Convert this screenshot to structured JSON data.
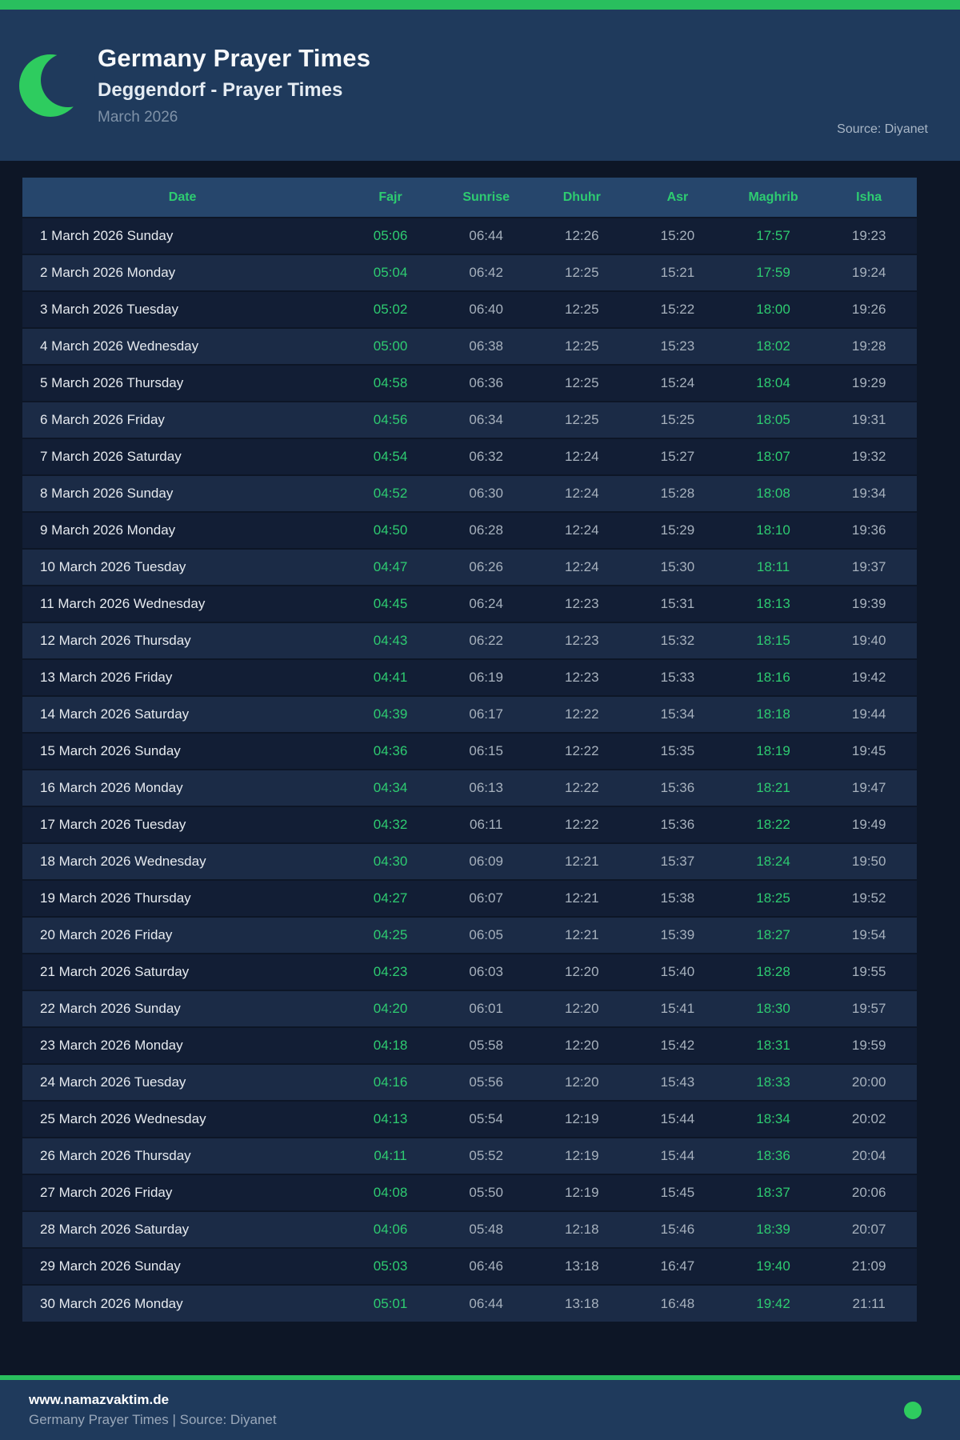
{
  "header": {
    "title": "Germany Prayer Times",
    "subtitle": "Deggendorf - Prayer Times",
    "period": "March 2026",
    "source": "Source: Diyanet"
  },
  "colors": {
    "accent_green": "#2ecc71",
    "bar_green": "#29bf5e",
    "header_navy": "#1f3a5c",
    "page_bg": "#0d1626",
    "table_header_bg": "#26466c",
    "row_odd": "#121e35",
    "row_even": "#1b2b46"
  },
  "icons": {
    "moon": "crescent-moon-icon",
    "status_dot": "green-dot-icon"
  },
  "table": {
    "columns": [
      "Date",
      "Fajr",
      "Sunrise",
      "Dhuhr",
      "Asr",
      "Maghrib",
      "Isha"
    ],
    "rows": [
      {
        "date": "1 March 2026 Sunday",
        "fajr": "05:06",
        "sunrise": "06:44",
        "dhuhr": "12:26",
        "asr": "15:20",
        "maghrib": "17:57",
        "isha": "19:23"
      },
      {
        "date": "2 March 2026 Monday",
        "fajr": "05:04",
        "sunrise": "06:42",
        "dhuhr": "12:25",
        "asr": "15:21",
        "maghrib": "17:59",
        "isha": "19:24"
      },
      {
        "date": "3 March 2026 Tuesday",
        "fajr": "05:02",
        "sunrise": "06:40",
        "dhuhr": "12:25",
        "asr": "15:22",
        "maghrib": "18:00",
        "isha": "19:26"
      },
      {
        "date": "4 March 2026 Wednesday",
        "fajr": "05:00",
        "sunrise": "06:38",
        "dhuhr": "12:25",
        "asr": "15:23",
        "maghrib": "18:02",
        "isha": "19:28"
      },
      {
        "date": "5 March 2026 Thursday",
        "fajr": "04:58",
        "sunrise": "06:36",
        "dhuhr": "12:25",
        "asr": "15:24",
        "maghrib": "18:04",
        "isha": "19:29"
      },
      {
        "date": "6 March 2026 Friday",
        "fajr": "04:56",
        "sunrise": "06:34",
        "dhuhr": "12:25",
        "asr": "15:25",
        "maghrib": "18:05",
        "isha": "19:31"
      },
      {
        "date": "7 March 2026 Saturday",
        "fajr": "04:54",
        "sunrise": "06:32",
        "dhuhr": "12:24",
        "asr": "15:27",
        "maghrib": "18:07",
        "isha": "19:32"
      },
      {
        "date": "8 March 2026 Sunday",
        "fajr": "04:52",
        "sunrise": "06:30",
        "dhuhr": "12:24",
        "asr": "15:28",
        "maghrib": "18:08",
        "isha": "19:34"
      },
      {
        "date": "9 March 2026 Monday",
        "fajr": "04:50",
        "sunrise": "06:28",
        "dhuhr": "12:24",
        "asr": "15:29",
        "maghrib": "18:10",
        "isha": "19:36"
      },
      {
        "date": "10 March 2026 Tuesday",
        "fajr": "04:47",
        "sunrise": "06:26",
        "dhuhr": "12:24",
        "asr": "15:30",
        "maghrib": "18:11",
        "isha": "19:37"
      },
      {
        "date": "11 March 2026 Wednesday",
        "fajr": "04:45",
        "sunrise": "06:24",
        "dhuhr": "12:23",
        "asr": "15:31",
        "maghrib": "18:13",
        "isha": "19:39"
      },
      {
        "date": "12 March 2026 Thursday",
        "fajr": "04:43",
        "sunrise": "06:22",
        "dhuhr": "12:23",
        "asr": "15:32",
        "maghrib": "18:15",
        "isha": "19:40"
      },
      {
        "date": "13 March 2026 Friday",
        "fajr": "04:41",
        "sunrise": "06:19",
        "dhuhr": "12:23",
        "asr": "15:33",
        "maghrib": "18:16",
        "isha": "19:42"
      },
      {
        "date": "14 March 2026 Saturday",
        "fajr": "04:39",
        "sunrise": "06:17",
        "dhuhr": "12:22",
        "asr": "15:34",
        "maghrib": "18:18",
        "isha": "19:44"
      },
      {
        "date": "15 March 2026 Sunday",
        "fajr": "04:36",
        "sunrise": "06:15",
        "dhuhr": "12:22",
        "asr": "15:35",
        "maghrib": "18:19",
        "isha": "19:45"
      },
      {
        "date": "16 March 2026 Monday",
        "fajr": "04:34",
        "sunrise": "06:13",
        "dhuhr": "12:22",
        "asr": "15:36",
        "maghrib": "18:21",
        "isha": "19:47"
      },
      {
        "date": "17 March 2026 Tuesday",
        "fajr": "04:32",
        "sunrise": "06:11",
        "dhuhr": "12:22",
        "asr": "15:36",
        "maghrib": "18:22",
        "isha": "19:49"
      },
      {
        "date": "18 March 2026 Wednesday",
        "fajr": "04:30",
        "sunrise": "06:09",
        "dhuhr": "12:21",
        "asr": "15:37",
        "maghrib": "18:24",
        "isha": "19:50"
      },
      {
        "date": "19 March 2026 Thursday",
        "fajr": "04:27",
        "sunrise": "06:07",
        "dhuhr": "12:21",
        "asr": "15:38",
        "maghrib": "18:25",
        "isha": "19:52"
      },
      {
        "date": "20 March 2026 Friday",
        "fajr": "04:25",
        "sunrise": "06:05",
        "dhuhr": "12:21",
        "asr": "15:39",
        "maghrib": "18:27",
        "isha": "19:54"
      },
      {
        "date": "21 March 2026 Saturday",
        "fajr": "04:23",
        "sunrise": "06:03",
        "dhuhr": "12:20",
        "asr": "15:40",
        "maghrib": "18:28",
        "isha": "19:55"
      },
      {
        "date": "22 March 2026 Sunday",
        "fajr": "04:20",
        "sunrise": "06:01",
        "dhuhr": "12:20",
        "asr": "15:41",
        "maghrib": "18:30",
        "isha": "19:57"
      },
      {
        "date": "23 March 2026 Monday",
        "fajr": "04:18",
        "sunrise": "05:58",
        "dhuhr": "12:20",
        "asr": "15:42",
        "maghrib": "18:31",
        "isha": "19:59"
      },
      {
        "date": "24 March 2026 Tuesday",
        "fajr": "04:16",
        "sunrise": "05:56",
        "dhuhr": "12:20",
        "asr": "15:43",
        "maghrib": "18:33",
        "isha": "20:00"
      },
      {
        "date": "25 March 2026 Wednesday",
        "fajr": "04:13",
        "sunrise": "05:54",
        "dhuhr": "12:19",
        "asr": "15:44",
        "maghrib": "18:34",
        "isha": "20:02"
      },
      {
        "date": "26 March 2026 Thursday",
        "fajr": "04:11",
        "sunrise": "05:52",
        "dhuhr": "12:19",
        "asr": "15:44",
        "maghrib": "18:36",
        "isha": "20:04"
      },
      {
        "date": "27 March 2026 Friday",
        "fajr": "04:08",
        "sunrise": "05:50",
        "dhuhr": "12:19",
        "asr": "15:45",
        "maghrib": "18:37",
        "isha": "20:06"
      },
      {
        "date": "28 March 2026 Saturday",
        "fajr": "04:06",
        "sunrise": "05:48",
        "dhuhr": "12:18",
        "asr": "15:46",
        "maghrib": "18:39",
        "isha": "20:07"
      },
      {
        "date": "29 March 2026 Sunday",
        "fajr": "05:03",
        "sunrise": "06:46",
        "dhuhr": "13:18",
        "asr": "16:47",
        "maghrib": "19:40",
        "isha": "21:09"
      },
      {
        "date": "30 March 2026 Monday",
        "fajr": "05:01",
        "sunrise": "06:44",
        "dhuhr": "13:18",
        "asr": "16:48",
        "maghrib": "19:42",
        "isha": "21:11"
      }
    ]
  },
  "footer": {
    "website": "www.namazvaktim.de",
    "tagline": "Germany Prayer Times | Source: Diyanet"
  }
}
